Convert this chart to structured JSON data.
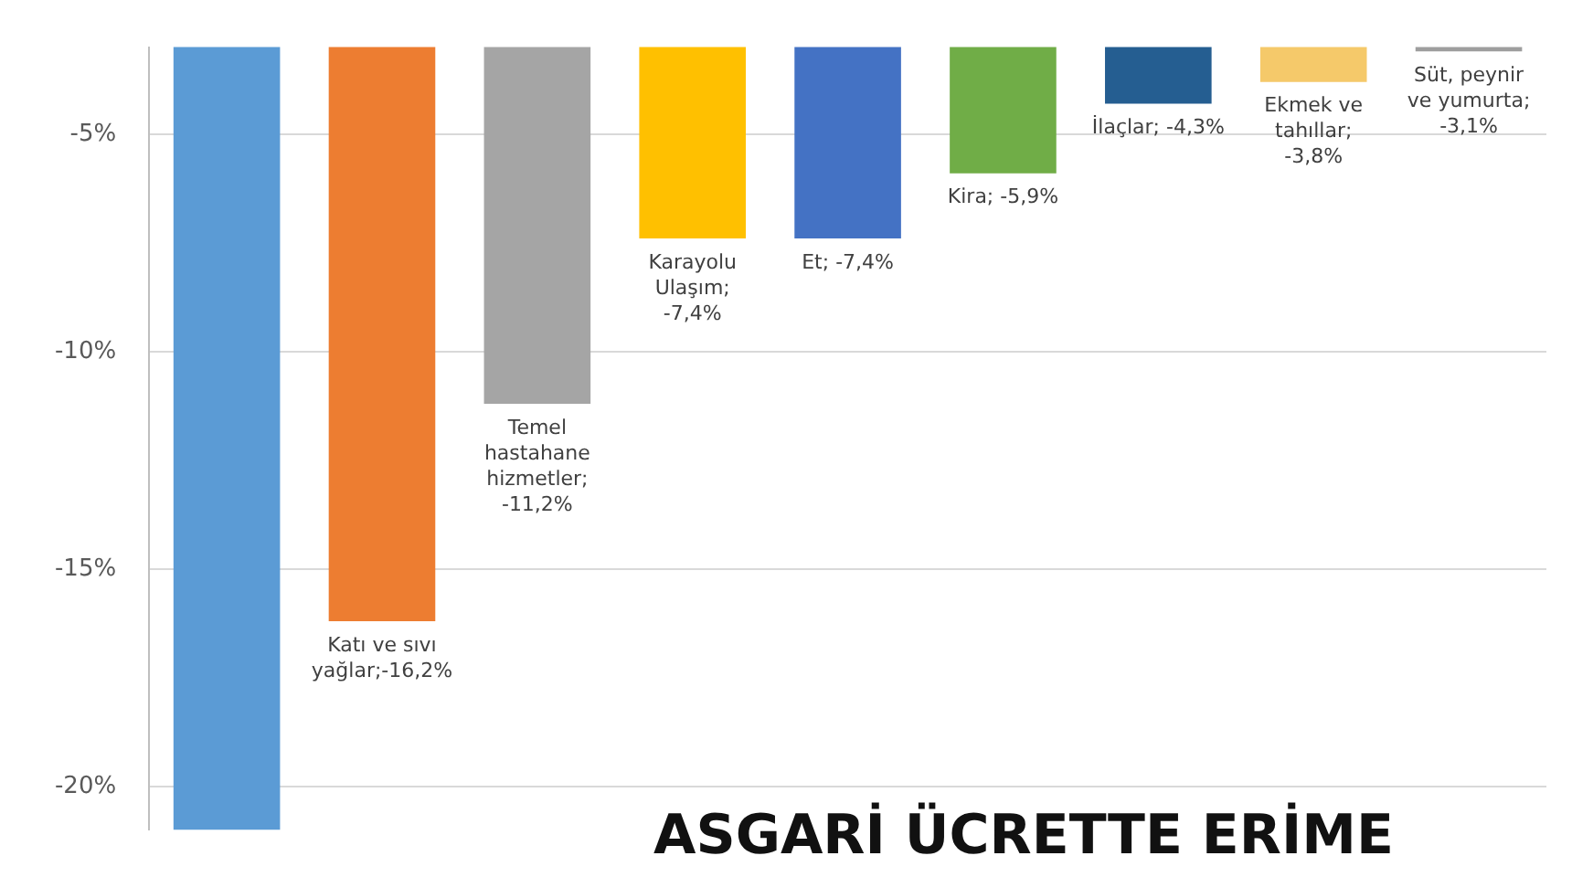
{
  "chart_data": {
    "type": "bar",
    "title": "ASGARİ ÜCRETTE ERİME",
    "categories": [
      null,
      null,
      null,
      null,
      null,
      null,
      null,
      null,
      null
    ],
    "values": [
      -21,
      -16.2,
      -11.2,
      -7.4,
      -7.4,
      -5.9,
      -4.3,
      -3.8,
      -3.1
    ],
    "colors": [
      "#5b9bd5",
      "#ed7d31",
      "#a5a5a5",
      "#ffc000",
      "#4472c4",
      "#70ad47",
      "#255e91",
      "#f5c96a",
      "#9e9e9e"
    ],
    "value_labels": [
      null,
      "Katı ve sıvı yağlar;-16,2%",
      "Temel hastahane hizmetler; -11,2%",
      "Karayolu Ulaşım; -7,4%",
      "Et; -7,4%",
      "Kira; -5,9%",
      "İlaçlar; -4,3%",
      "Ekmek ve tahıllar; -3,8%",
      "Süt, peynir ve yumurta; -3,1%"
    ],
    "ylim": [
      -21,
      -3
    ],
    "yticks": [
      {
        "value": -5,
        "label": "-5%"
      },
      {
        "value": -10,
        "label": "-10%"
      },
      {
        "value": -15,
        "label": "-15%"
      },
      {
        "value": -20,
        "label": "-20%"
      }
    ],
    "grid": "y",
    "legend": false
  }
}
